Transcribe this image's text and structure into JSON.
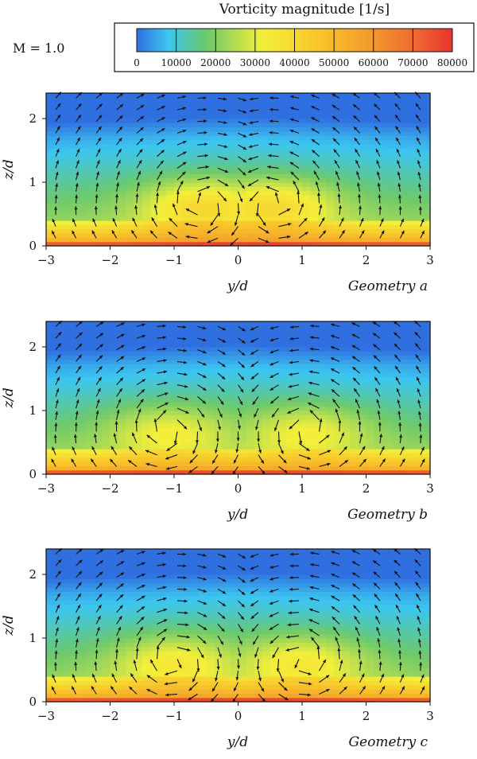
{
  "header": {
    "colorbar_title": "Vorticity magnitude [1/s]",
    "mach_label": "M = 1.0"
  },
  "colors": {
    "scale": [
      "#2f6fe0",
      "#3cc6f0",
      "#6cc96c",
      "#f4ef3a",
      "#f8c52a",
      "#f39a2c",
      "#ee6a32",
      "#e8342e"
    ]
  },
  "chart_data": [
    {
      "type": "heatmap",
      "geometry_label": "Geometry a",
      "xlabel": "y/d",
      "ylabel": "z/d",
      "xlim": [
        -3,
        3
      ],
      "ylim": [
        0,
        2.4
      ],
      "xticks": [
        "−3",
        "−2",
        "−1",
        "0",
        "1",
        "2",
        "3"
      ],
      "yticks": [
        "0",
        "1",
        "2"
      ],
      "colorbar": {
        "min": 0,
        "max": 80000,
        "ticks": [
          "0",
          "10000",
          "20000",
          "30000",
          "40000",
          "50000",
          "60000",
          "70000",
          "80000"
        ]
      },
      "vortex": {
        "y": 0.55,
        "z": 0.65,
        "core_level": 0.42
      }
    },
    {
      "type": "heatmap",
      "geometry_label": "Geometry b",
      "xlabel": "y/d",
      "ylabel": "z/d",
      "xlim": [
        -3,
        3
      ],
      "ylim": [
        0,
        2.4
      ],
      "xticks": [
        "−3",
        "−2",
        "−1",
        "0",
        "1",
        "2",
        "3"
      ],
      "yticks": [
        "0",
        "1",
        "2"
      ],
      "colorbar": {
        "min": 0,
        "max": 80000,
        "ticks": [
          "0",
          "10000",
          "20000",
          "30000",
          "40000",
          "50000",
          "60000",
          "70000",
          "80000"
        ]
      },
      "vortex": {
        "y": 1.1,
        "z": 0.7,
        "core_level": 0.34
      }
    },
    {
      "type": "heatmap",
      "geometry_label": "Geometry c",
      "xlabel": "y/d",
      "ylabel": "z/d",
      "xlim": [
        -3,
        3
      ],
      "ylim": [
        0,
        2.4
      ],
      "xticks": [
        "−3",
        "−2",
        "−1",
        "0",
        "1",
        "2",
        "3"
      ],
      "yticks": [
        "0",
        "1",
        "2"
      ],
      "colorbar": {
        "min": 0,
        "max": 80000,
        "ticks": [
          "0",
          "10000",
          "20000",
          "30000",
          "40000",
          "50000",
          "60000",
          "70000",
          "80000"
        ]
      },
      "vortex": {
        "y": 1.0,
        "z": 0.65,
        "core_level": 0.36
      }
    }
  ]
}
